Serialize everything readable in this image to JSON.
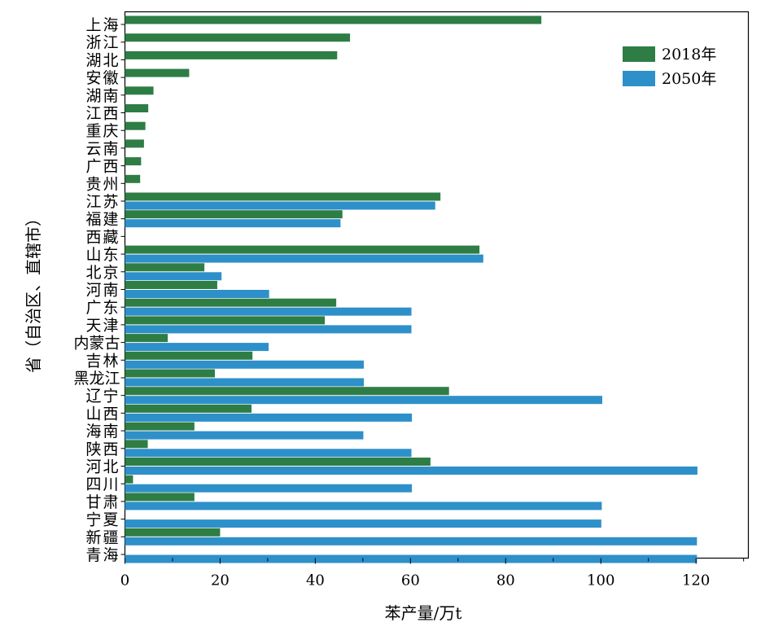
{
  "chart_data": {
    "type": "bar",
    "orientation": "horizontal",
    "xlabel": "苯产量/万t",
    "ylabel": "省（自治区、直辖市）",
    "xlim": [
      0,
      131
    ],
    "xticks": [
      0,
      20,
      40,
      60,
      80,
      100,
      120
    ],
    "legend_position": "top-right",
    "grid": false,
    "categories": [
      "上海",
      "浙江",
      "湖北",
      "安徽",
      "湖南",
      "江西",
      "重庆",
      "云南",
      "广西",
      "贵州",
      "江苏",
      "福建",
      "西藏",
      "山东",
      "北京",
      "河南",
      "广东",
      "天津",
      "内蒙古",
      "吉林",
      "黑龙江",
      "辽宁",
      "山西",
      "海南",
      "陕西",
      "河北",
      "四川",
      "甘肃",
      "宁夏",
      "新疆",
      "青海"
    ],
    "series": [
      {
        "name": "2018年",
        "color": "#2e7d45",
        "values": [
          87.5,
          47.3,
          44.6,
          13.5,
          6.0,
          4.9,
          4.3,
          4.0,
          3.4,
          3.2,
          66.3,
          45.7,
          null,
          74.5,
          16.7,
          19.4,
          44.4,
          42.0,
          9.0,
          26.8,
          18.9,
          68.1,
          26.6,
          14.6,
          4.8,
          64.2,
          1.7,
          14.6,
          null,
          20.0,
          null
        ]
      },
      {
        "name": "2050年",
        "color": "#2e90c9",
        "values": [
          null,
          null,
          null,
          null,
          null,
          null,
          null,
          null,
          null,
          null,
          65.2,
          45.3,
          null,
          75.3,
          20.3,
          30.3,
          60.2,
          60.2,
          30.2,
          50.2,
          50.2,
          100.3,
          60.3,
          50.1,
          60.2,
          120.3,
          60.3,
          100.2,
          100.1,
          120.2,
          120.2
        ]
      }
    ]
  }
}
